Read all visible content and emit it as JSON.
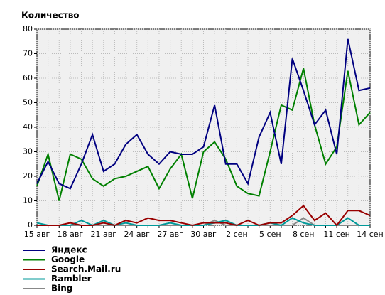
{
  "chart_data": {
    "type": "line",
    "title": "Количество",
    "categories": [
      "15 авг",
      null,
      null,
      "18 авг",
      null,
      null,
      "21 авг",
      null,
      null,
      "24 авг",
      null,
      null,
      "27 авг",
      null,
      null,
      "30 авг",
      null,
      null,
      "2 сен",
      null,
      null,
      "5 сен",
      null,
      null,
      "8 сен",
      null,
      null,
      "11 сен",
      null,
      null,
      "14 сен"
    ],
    "series": [
      {
        "name": "Яндекс",
        "color": "#000080",
        "values": [
          17,
          26,
          17,
          15,
          25,
          37,
          22,
          25,
          33,
          37,
          29,
          25,
          30,
          29,
          29,
          32,
          49,
          25,
          25,
          17,
          36,
          46,
          25,
          68,
          55,
          41,
          47,
          29,
          76,
          55,
          56
        ]
      },
      {
        "name": "Google",
        "color": "#008000",
        "values": [
          16,
          29,
          10,
          29,
          27,
          19,
          16,
          19,
          20,
          22,
          24,
          15,
          23,
          29,
          11,
          30,
          34,
          27,
          16,
          13,
          12,
          30,
          49,
          47,
          64,
          41,
          25,
          32,
          63,
          41,
          46
        ]
      },
      {
        "name": "Search.Mail.ru",
        "color": "#990000",
        "values": [
          0,
          0,
          0,
          1,
          0,
          0,
          1,
          0,
          2,
          1,
          3,
          2,
          2,
          1,
          0,
          1,
          1,
          1,
          0,
          2,
          0,
          1,
          1,
          4,
          8,
          2,
          5,
          0,
          6,
          6,
          4
        ]
      },
      {
        "name": "Rambler",
        "color": "#009999",
        "values": [
          1,
          0,
          0,
          0,
          2,
          0,
          2,
          0,
          1,
          0,
          0,
          0,
          1,
          0,
          0,
          0,
          1,
          2,
          0,
          0,
          0,
          1,
          0,
          3,
          1,
          0,
          0,
          0,
          3,
          0,
          0
        ]
      },
      {
        "name": "Bing",
        "color": "#888888",
        "values": [
          0,
          0,
          0,
          0,
          0,
          0,
          0,
          0,
          0,
          0,
          0,
          0,
          0,
          0,
          0,
          0,
          2,
          0,
          0,
          0,
          0,
          0,
          0,
          0,
          3,
          0,
          0,
          0,
          0,
          0,
          0
        ]
      }
    ],
    "ylim": [
      0,
      80
    ],
    "yticks": [
      0,
      10,
      20,
      30,
      40,
      50,
      60,
      70,
      80
    ],
    "grid": true
  }
}
